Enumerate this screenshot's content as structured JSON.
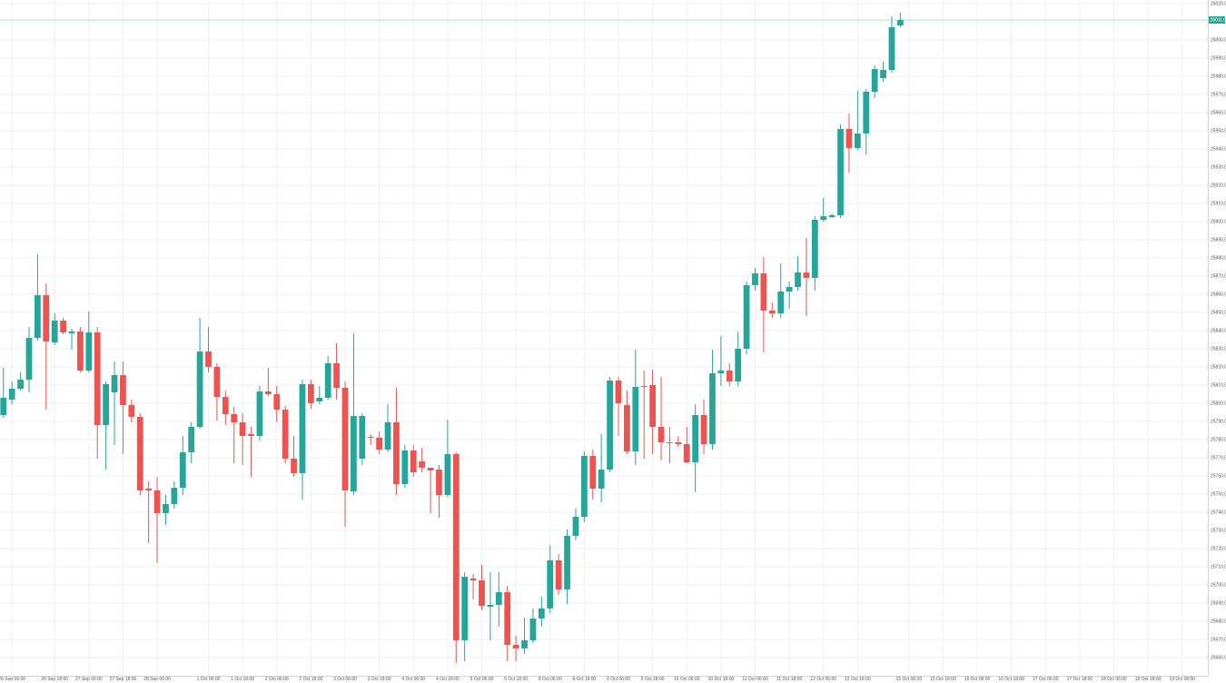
{
  "chart_data": {
    "type": "candlestick",
    "up_color": "#26a69a",
    "down_color": "#ef5350",
    "grid": true,
    "x": [
      0,
      1,
      2,
      3,
      4,
      5,
      6,
      7,
      8,
      9,
      10,
      11,
      12,
      13,
      14,
      15,
      16,
      17,
      18,
      19,
      20,
      21,
      22,
      23,
      24,
      25,
      26,
      27,
      28,
      29,
      30,
      31,
      32,
      33,
      34,
      35,
      36,
      37,
      38,
      39,
      40,
      41,
      42,
      43,
      44,
      45,
      46,
      47,
      48,
      49,
      50,
      51,
      52,
      53,
      54,
      55,
      56,
      57,
      58,
      59,
      60,
      61,
      62,
      63,
      64,
      65,
      66,
      67,
      68,
      69,
      70,
      71,
      72,
      73,
      74,
      75,
      76,
      77,
      78,
      79,
      80,
      81,
      82,
      83,
      84,
      85,
      86,
      87,
      88,
      89,
      90,
      91,
      92,
      93,
      94,
      95,
      96,
      97,
      98,
      99,
      100,
      101,
      102,
      103,
      104,
      105
    ],
    "open": [
      25793.5,
      25802,
      25808,
      25813,
      25836,
      25859.5,
      25833.5,
      25845.5,
      25838.5,
      25839.5,
      25818,
      25839,
      25788,
      25806,
      25815.5,
      25799,
      25792.5,
      25753,
      25752,
      25739.5,
      25744.5,
      25753.5,
      25773,
      25787,
      25828.5,
      25820,
      25803.5,
      25794,
      25789.5,
      25783,
      25782,
      25806.5,
      25805,
      25796.5,
      25769.5,
      25761.5,
      25810.5,
      25801,
      25803,
      25822,
      25808.5,
      25751.5,
      25769.5,
      25781.5,
      25781,
      25774.5,
      25789.5,
      25755.5,
      25774,
      25768,
      25764.5,
      25763.5,
      25749.5,
      25772,
      25669.5,
      25703.5,
      25702.5,
      25688,
      25689,
      25696,
      25667,
      25665,
      25669.5,
      25681.5,
      25687,
      25713.5,
      25697.5,
      25727,
      25737.5,
      25771,
      25753,
      25763.5,
      25812.5,
      25799,
      25773.5,
      25809.5,
      25810,
      25787,
      25778.5,
      25778.5,
      25777.5,
      25767.5,
      25793.5,
      25777.5,
      25816.5,
      25818,
      25812,
      25830,
      25865,
      25871.5,
      25851,
      25849.5,
      25861.5,
      25864,
      25872,
      25869,
      25901,
      25902.5,
      25903.5,
      25951,
      25940.5,
      25948.5,
      25971.5,
      25979,
      25983.5,
      26008
    ],
    "high": [
      25819.5,
      25812,
      25817,
      25842,
      25882,
      25866,
      25849.5,
      25847,
      25841,
      25842,
      25850.5,
      25842,
      25812,
      25823,
      25823,
      25802,
      25794.5,
      25757,
      25759.5,
      25749.5,
      25757,
      25782,
      25789.5,
      25847,
      25842,
      25822,
      25807,
      25798,
      25794.5,
      25787,
      25809.5,
      25819.5,
      25809.5,
      25798.5,
      25782,
      25813,
      25813,
      25809.5,
      25826,
      25833,
      25812,
      25838.5,
      25794.5,
      25783,
      25784.5,
      25799.5,
      25808.5,
      25777,
      25777,
      25775.5,
      25764.5,
      25766,
      25791,
      25773,
      25707,
      25706,
      25711,
      25707,
      25707,
      25699.5,
      25672,
      25682,
      25687,
      25693.5,
      25722,
      25717,
      25730.5,
      25742,
      25773.5,
      25774.5,
      25783,
      25814.5,
      25814.5,
      25807,
      25829.5,
      25818,
      25818.5,
      25814.5,
      25787,
      25782,
      25787,
      25799.5,
      25802,
      25829.5,
      25837,
      25822,
      25839.5,
      25867,
      25874.5,
      25880.5,
      25855.5,
      25877,
      25867,
      25881,
      25891,
      25903,
      25913,
      25904.5,
      25953.5,
      25959.5,
      25972,
      25973,
      25986,
      25988,
      26013,
      26015
    ],
    "low": [
      25792,
      25799.5,
      25807,
      25806,
      25834.5,
      25796.5,
      25832,
      25838,
      25829.5,
      25817,
      25817,
      25769.5,
      25763.5,
      25777,
      25772,
      25789.5,
      25749.5,
      25723,
      25712,
      25733,
      25742,
      25749.5,
      25767,
      25786,
      25817,
      25790.5,
      25788,
      25767,
      25766,
      25759.5,
      25779.5,
      25804,
      25789.5,
      25767,
      25759.5,
      25747,
      25797,
      25799.5,
      25802,
      25802,
      25732,
      25749.5,
      25766,
      25777,
      25772,
      25773,
      25749.5,
      25753.5,
      25759.5,
      25762,
      25739.5,
      25737,
      25748.5,
      25657,
      25658,
      25692,
      25686,
      25669.5,
      25677,
      25658,
      25658,
      25662,
      25668,
      25677,
      25684.5,
      25694.5,
      25689.5,
      25724.5,
      25734.5,
      25747,
      25745.5,
      25762,
      25782,
      25772,
      25766,
      25769.5,
      25772,
      25768.5,
      25767,
      25776,
      25767,
      25751,
      25772,
      25774.5,
      25809.5,
      25809.5,
      25809.5,
      25827,
      25862,
      25828,
      25847,
      25847,
      25852,
      25862,
      25848,
      25862,
      25900,
      25902,
      25902,
      25927,
      25939.5,
      25937,
      25968,
      25977,
      25982,
      26007
    ],
    "close": [
      25803,
      25808,
      25813,
      25836,
      25859.5,
      25834,
      25845.5,
      25839,
      25839.5,
      25818,
      25839,
      25788,
      25810.5,
      25815.5,
      25799,
      25792.5,
      25752,
      25752,
      25739.5,
      25744.5,
      25753.5,
      25773,
      25787,
      25828.5,
      25820,
      25803.5,
      25794,
      25789.5,
      25782,
      25782,
      25806.5,
      25805,
      25796.5,
      25769.5,
      25761.5,
      25810.5,
      25800,
      25803,
      25822,
      25808.5,
      25752,
      25793,
      25793,
      25781,
      25774.5,
      25789.5,
      25755.5,
      25774,
      25762,
      25764.5,
      25763,
      25749.5,
      25772,
      25669.5,
      25704.5,
      25702.5,
      25688.5,
      25689,
      25696,
      25667,
      25665,
      25669.5,
      25681.5,
      25687,
      25713.5,
      25697.5,
      25727,
      25737.5,
      25771,
      25753,
      25763.5,
      25812.5,
      25800,
      25773.5,
      25809,
      25809,
      25787,
      25778.5,
      25778,
      25777.5,
      25767.5,
      25793.5,
      25777.5,
      25816.5,
      25818,
      25812,
      25830,
      25865,
      25871.5,
      25851,
      25849.5,
      25861.5,
      25864,
      25872,
      25869,
      25901,
      25903,
      25903.5,
      25951,
      25940.5,
      25948.5,
      25971.5,
      25984,
      25983.5,
      26007,
      26011
    ],
    "xlim": [
      -0.4,
      141
    ],
    "ylim": [
      25650,
      26022
    ],
    "yticks": [
      {
        "value": 25660,
        "label": "25660.00"
      },
      {
        "value": 25670,
        "label": "25670.00"
      },
      {
        "value": 25680,
        "label": "25680.00"
      },
      {
        "value": 25690,
        "label": "25690.00"
      },
      {
        "value": 25700,
        "label": "25700.00"
      },
      {
        "value": 25710,
        "label": "25710.00"
      },
      {
        "value": 25720,
        "label": "25720.00"
      },
      {
        "value": 25730,
        "label": "25730.00"
      },
      {
        "value": 25740,
        "label": "25740.00"
      },
      {
        "value": 25750,
        "label": "25750.00"
      },
      {
        "value": 25760,
        "label": "25760.00"
      },
      {
        "value": 25770,
        "label": "25770.00"
      },
      {
        "value": 25780,
        "label": "25780.00"
      },
      {
        "value": 25790,
        "label": "25790.00"
      },
      {
        "value": 25800,
        "label": "25800.00"
      },
      {
        "value": 25810,
        "label": "25810.00"
      },
      {
        "value": 25820,
        "label": "25820.00"
      },
      {
        "value": 25830,
        "label": "25830.00"
      },
      {
        "value": 25840,
        "label": "25840.00"
      },
      {
        "value": 25850,
        "label": "25850.00"
      },
      {
        "value": 25860,
        "label": "25860.00"
      },
      {
        "value": 25870,
        "label": "25870.00"
      },
      {
        "value": 25880,
        "label": "25880.00"
      },
      {
        "value": 25890,
        "label": "25890.00"
      },
      {
        "value": 25900,
        "label": "25900.00"
      },
      {
        "value": 25910,
        "label": "25910.00"
      },
      {
        "value": 25920,
        "label": "25920.00"
      },
      {
        "value": 25930,
        "label": "25930.00"
      },
      {
        "value": 25940,
        "label": "25940.00"
      },
      {
        "value": 25950,
        "label": "25950.00"
      },
      {
        "value": 25960,
        "label": "25960.00"
      },
      {
        "value": 25970,
        "label": "25970.00"
      },
      {
        "value": 25980,
        "label": "25980.00"
      },
      {
        "value": 25990,
        "label": "25990.00"
      },
      {
        "value": 26000,
        "label": "26000.00"
      },
      {
        "value": 26010,
        "label": "26010.00"
      },
      {
        "value": 26020,
        "label": "26020.00"
      }
    ],
    "xticks": [
      {
        "value": 1,
        "label": "26 Sep 06:00"
      },
      {
        "value": 6,
        "label": "26 Sep 18:00"
      },
      {
        "value": 10,
        "label": "27 Sep 06:00"
      },
      {
        "value": 14,
        "label": "27 Sep 18:00"
      },
      {
        "value": 18,
        "label": "28 Sep 06:00"
      },
      {
        "value": 24,
        "label": "1 Oct 06:00"
      },
      {
        "value": 28,
        "label": "1 Oct 18:00"
      },
      {
        "value": 32,
        "label": "2 Oct 06:00"
      },
      {
        "value": 36,
        "label": "2 Oct 18:00"
      },
      {
        "value": 40,
        "label": "3 Oct 06:00"
      },
      {
        "value": 44,
        "label": "3 Oct 18:00"
      },
      {
        "value": 48,
        "label": "4 Oct 06:00"
      },
      {
        "value": 52,
        "label": "4 Oct 18:00"
      },
      {
        "value": 56,
        "label": "5 Oct 06:00"
      },
      {
        "value": 60,
        "label": "5 Oct 18:00"
      },
      {
        "value": 64,
        "label": "8 Oct 06:00"
      },
      {
        "value": 68,
        "label": "8 Oct 18:00"
      },
      {
        "value": 72,
        "label": "9 Oct 06:00"
      },
      {
        "value": 76,
        "label": "9 Oct 18:00"
      },
      {
        "value": 80,
        "label": "10 Oct 06:00"
      },
      {
        "value": 84,
        "label": "10 Oct 18:00"
      },
      {
        "value": 88,
        "label": "11 Oct 06:00"
      },
      {
        "value": 92,
        "label": "11 Oct 18:00"
      },
      {
        "value": 96,
        "label": "12 Oct 06:00"
      },
      {
        "value": 100,
        "label": "12 Oct 18:00"
      },
      {
        "value": 106,
        "label": "15 Oct 06:00"
      },
      {
        "value": 110,
        "label": "15 Oct 18:00"
      },
      {
        "value": 114,
        "label": "16 Oct 06:00"
      },
      {
        "value": 118,
        "label": "16 Oct 18:00"
      },
      {
        "value": 122,
        "label": "17 Oct 06:00"
      },
      {
        "value": 126,
        "label": "17 Oct 18:00"
      },
      {
        "value": 130,
        "label": "18 Oct 06:00"
      },
      {
        "value": 134,
        "label": "18 Oct 18:00"
      },
      {
        "value": 138,
        "label": "19 Oct 06:00"
      }
    ],
    "last_price": {
      "value": 26011,
      "label": "26011.00"
    }
  }
}
